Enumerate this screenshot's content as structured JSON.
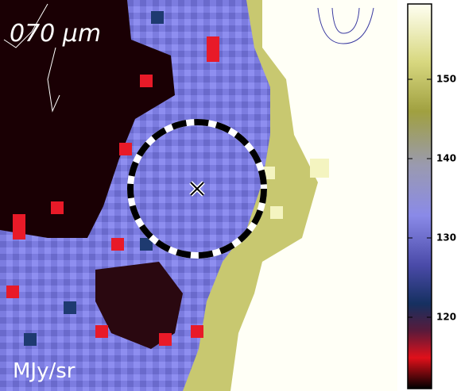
{
  "image": {
    "label": "070 μm",
    "unit": "MJy/sr"
  },
  "colorbar": {
    "ylim": [
      111,
      159.5
    ],
    "yticks": [
      120,
      130,
      140,
      150
    ]
  }
}
